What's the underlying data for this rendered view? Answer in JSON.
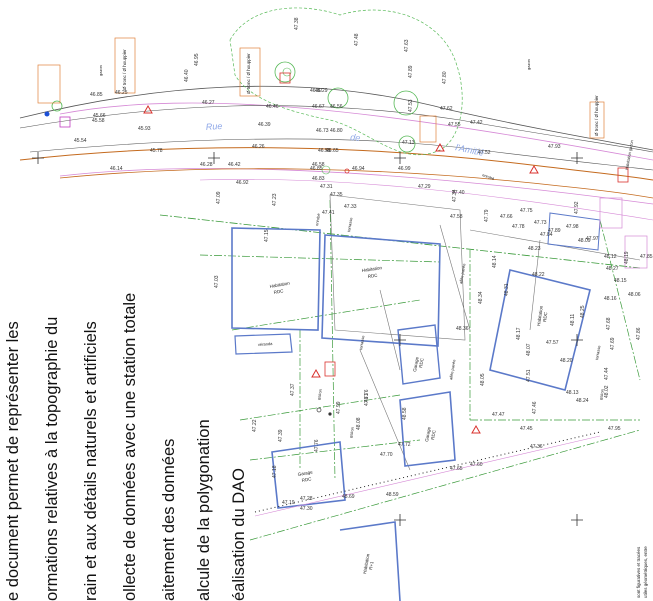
{
  "overlay_lines": [
    "e document permet de représenter les",
    "ormations relatives à la topographie du",
    "rain et aux détails naturels et artificiels",
    "ollecte de données avec une station totale",
    "aitement des données",
    "alcule de la polygonation",
    "éalisation du DAO"
  ],
  "road_name": [
    "Rue",
    "de",
    "l'Amitié"
  ],
  "buildings": [
    {
      "id": "b1",
      "label": [
        "Habitation",
        "RDC"
      ]
    },
    {
      "id": "b2",
      "label": [
        "Habitation",
        "RDC"
      ]
    },
    {
      "id": "b3",
      "label": [
        "Habitation",
        "RDC"
      ]
    },
    {
      "id": "b4",
      "label": [
        "Garage",
        "RDC"
      ]
    },
    {
      "id": "b5",
      "label": [
        "Garage",
        "RDC"
      ]
    },
    {
      "id": "b6",
      "label": [
        "Garage",
        "RDC"
      ]
    },
    {
      "id": "b7",
      "label": [
        "Habitation",
        "R+1"
      ]
    }
  ],
  "surface_labels": {
    "gazon": "gazon",
    "terrasse": "terrasse",
    "enrobe": "enrobé",
    "veranda": "véranda",
    "allee_pavee": "allée pavée",
    "habitation_gazon": "Habitation gazon"
  },
  "elevations": [
    "46.95",
    "47.38",
    "47.48",
    "47.63",
    "47.80",
    "46.85",
    "46.25",
    "46.40",
    "46.87",
    "46.29",
    "47.89",
    "47.62",
    "47.55",
    "45.66",
    "46.27",
    "46.46",
    "46.67",
    "46.56",
    "45.58",
    "45.93",
    "46.39",
    "46.73",
    "46.80",
    "47.53",
    "47.42",
    "47.93",
    "45.54",
    "45.78",
    "46.26",
    "46.55",
    "46.65",
    "47.13",
    "47.52",
    "46.14",
    "46.28",
    "46.42",
    "46.58",
    "46.85",
    "46.94",
    "46.99",
    "47.29",
    "47.40",
    "47.75",
    "46.92",
    "46.83",
    "47.34",
    "47.31",
    "47.35",
    "47.79",
    "47.92",
    "47.09",
    "47.23",
    "47.33",
    "47.41",
    "47.58",
    "47.84",
    "47.89",
    "47.97",
    "47.15",
    "47.03",
    "47.66",
    "47.73",
    "47.98",
    "48.09",
    "47.78",
    "48.12",
    "48.19",
    "47.85",
    "48.14",
    "48.23",
    "48.27",
    "48.15",
    "48.16",
    "48.06",
    "48.31",
    "48.22",
    "48.34",
    "48.11",
    "47.68",
    "48.36",
    "48.17",
    "48.25",
    "47.57",
    "48.07",
    "48.20",
    "47.86",
    "47.69",
    "48.05",
    "47.51",
    "47.44",
    "48.02",
    "47.47",
    "48.13",
    "48.24",
    "47.46",
    "47.95",
    "48.08",
    "47.99",
    "47.71",
    "48.58",
    "47.70",
    "47.72",
    "47.65",
    "47.60",
    "47.45",
    "47.36",
    "47.39",
    "47.37",
    "47.76",
    "47.22",
    "47.18",
    "47.28",
    "47.19",
    "47.30",
    "48.76",
    "48.69",
    "48.59"
  ],
  "tree_note": "Ø tronc / Ø houppier",
  "legend_text": [
    "sont figuratives et tracées",
    "utiles géométriques, entre"
  ],
  "colors": {
    "building_outline": "#5b79c9",
    "parcel_line": "#2f9e2f",
    "dash_dot_line": "#3a9a3a",
    "road_edge": "#555555",
    "road_axis": "#c46a1e",
    "pink_line": "#d68ad6",
    "survey_point": "#d9322e",
    "note_box": "#e0823a",
    "text_overlay": "#111111"
  }
}
